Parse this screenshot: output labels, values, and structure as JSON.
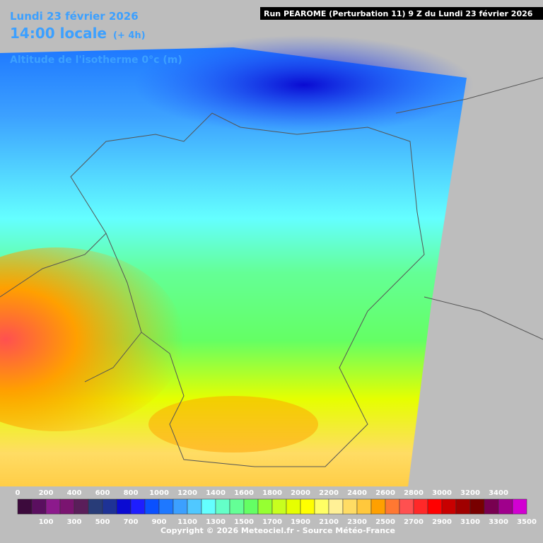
{
  "header": {
    "date": "Lundi 23 février 2026",
    "time": "14:00 locale",
    "offset": "(+ 4h)",
    "parameter": "Altitude de l'isotherme 0°c (m)",
    "run": "Run PEAROME (Perturbation 11) 9 Z du Lundi 23 février 2026"
  },
  "legend": {
    "values": [
      0,
      100,
      200,
      300,
      400,
      500,
      600,
      700,
      800,
      900,
      1000,
      1100,
      1200,
      1300,
      1400,
      1500,
      1600,
      1700,
      1800,
      1900,
      2000,
      2100,
      2200,
      2300,
      2400,
      2500,
      2600,
      2700,
      2800,
      2900,
      3000,
      3100,
      3200,
      3300,
      3400,
      3500
    ],
    "colors": [
      "#3c0a3c",
      "#5a0f5f",
      "#8c1a8c",
      "#7a1470",
      "#5a1e5a",
      "#283c78",
      "#1e3296",
      "#0a0ad2",
      "#1e1eff",
      "#0a50ff",
      "#1e78ff",
      "#3ca0ff",
      "#50c8ff",
      "#64ffff",
      "#64ffc8",
      "#64ff96",
      "#64ff64",
      "#96ff32",
      "#c8ff1e",
      "#e6ff00",
      "#ffff00",
      "#ffff64",
      "#fff096",
      "#ffdc64",
      "#ffc83c",
      "#ffa000",
      "#ff7832",
      "#ff5050",
      "#ff2828",
      "#ff0000",
      "#c80000",
      "#a00000",
      "#780000",
      "#780050",
      "#a0008c",
      "#d200d2",
      "#ff28ff",
      "#ff8cff"
    ]
  },
  "footer": {
    "copyright": "Copyright © 2026 Meteociel.fr - Source Météo-France"
  }
}
